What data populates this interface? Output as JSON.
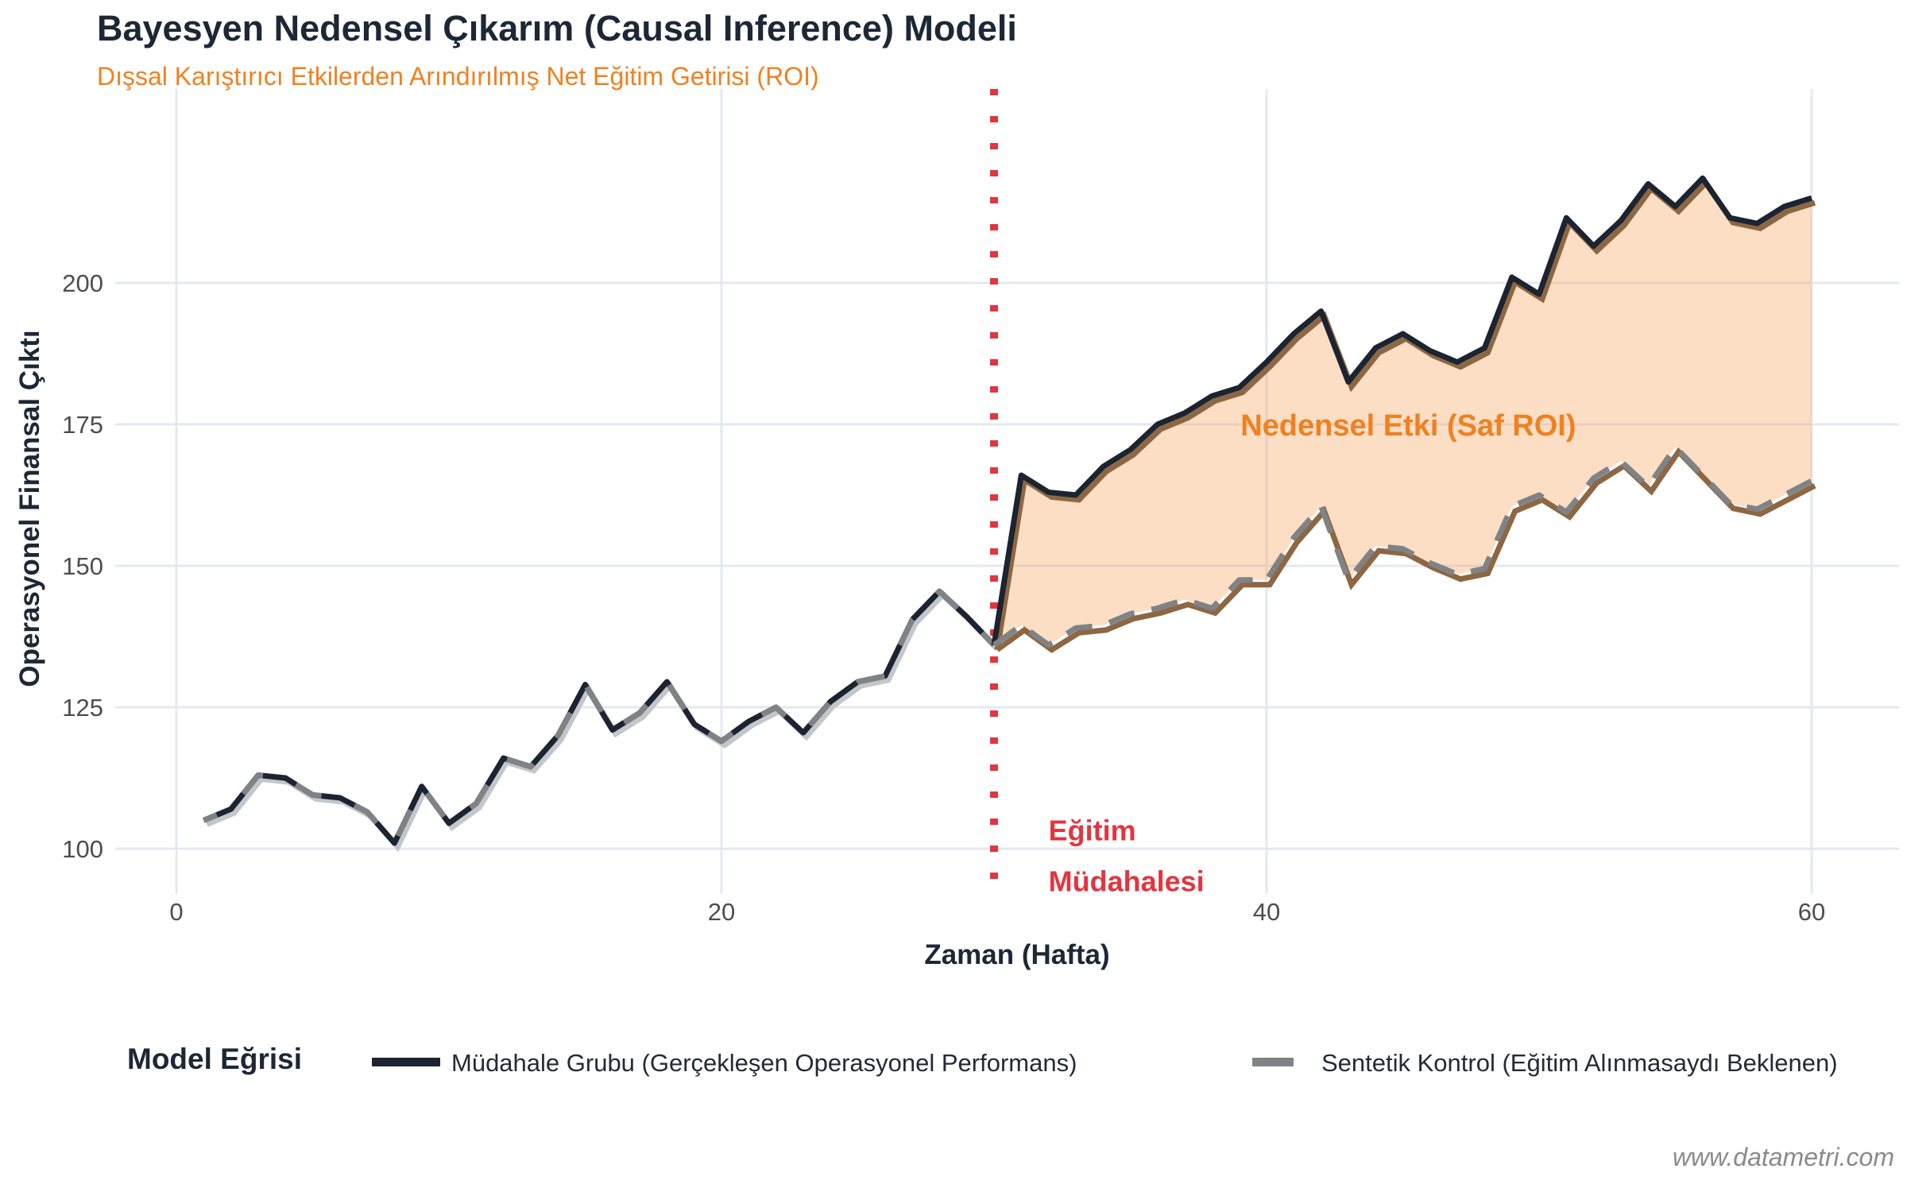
{
  "header": {
    "title": "Bayesyen Nedensel Çıkarım (Causal Inference) Modeli",
    "subtitle": "Dışsal Karıştırıcı Etkilerden Arındırılmış Net Eğitim Getirisi (ROI)"
  },
  "chart_data": {
    "type": "line",
    "title": "Bayesyen Nedensel Çıkarım (Causal Inference) Modeli",
    "subtitle": "Dışsal Karıştırıcı Etkilerden Arındırılmış Net Eğitim Getirisi (ROI)",
    "xlabel": "Zaman (Hafta)",
    "ylabel": "Operasyonel Finansal Çıktı",
    "x_ticks": [
      0,
      20,
      40,
      60
    ],
    "y_ticks": [
      100,
      125,
      150,
      175,
      200
    ],
    "xlim": [
      -2.2,
      63.2
    ],
    "ylim": [
      92,
      234
    ],
    "grid": true,
    "legend_position": "bottom",
    "x": [
      1,
      2,
      3,
      4,
      5,
      6,
      7,
      8,
      9,
      10,
      11,
      12,
      13,
      14,
      15,
      16,
      17,
      18,
      19,
      20,
      21,
      22,
      23,
      24,
      25,
      26,
      27,
      28,
      29,
      30,
      31,
      32,
      33,
      34,
      35,
      36,
      37,
      38,
      39,
      40,
      41,
      42,
      43,
      44,
      45,
      46,
      47,
      48,
      49,
      50,
      51,
      52,
      53,
      54,
      55,
      56,
      57,
      58,
      59,
      60
    ],
    "series": [
      {
        "name": "Müdahale Grubu (Gerçekleşen Operasyonel Performans)",
        "style": "solid",
        "color": "#1b2430",
        "values": [
          105,
          107,
          113,
          112.5,
          109.5,
          109,
          106.5,
          101,
          111,
          104.5,
          108,
          116,
          114.5,
          120,
          129,
          121,
          124,
          129.5,
          122,
          119,
          122.5,
          125,
          120.5,
          126,
          129.5,
          130.5,
          140.5,
          145.5,
          141,
          136,
          166,
          163,
          162.5,
          167.5,
          170.5,
          175,
          177,
          180,
          181.5,
          186,
          191,
          195,
          182.5,
          188.5,
          191,
          188,
          186,
          188.5,
          201,
          198,
          211.5,
          206.5,
          211,
          217.5,
          213.5,
          218.5,
          211.5,
          210.5,
          213.5,
          215
        ]
      },
      {
        "name": "Sentetik Kontrol (Eğitim Alınmasaydı Beklenen)",
        "style": "dashed",
        "color": "#7f8386",
        "values": [
          105,
          107,
          113,
          112.5,
          109.5,
          109,
          106.5,
          101,
          111,
          104.5,
          108,
          116,
          114.5,
          120,
          129,
          121,
          124,
          129.5,
          122,
          119,
          122.5,
          125,
          120.5,
          126,
          129.5,
          130.5,
          140.5,
          145.5,
          141,
          136,
          139.5,
          136,
          139,
          139.5,
          141.5,
          142.5,
          144,
          142.5,
          147.5,
          147.5,
          155,
          160.5,
          147.5,
          153.5,
          153,
          150.5,
          148.5,
          149.5,
          160.5,
          162.5,
          159.5,
          165.5,
          168.5,
          164,
          171,
          166,
          161,
          160,
          162.5,
          165
        ]
      }
    ],
    "intervention_line": {
      "x": 30,
      "color": "#e23540",
      "label_line1": "Eğitim",
      "label_line2": "Müdahalesi"
    },
    "effect_annotation": {
      "text": "Nedensel Etki (Saf ROI)",
      "color": "#ef8120",
      "x": 45.2,
      "y": 173
    },
    "ribbon": {
      "from_x": 30,
      "fill": "rgba(245,160,90,0.35)",
      "edge": "#8d6743"
    },
    "colors": {
      "grid": "#e4e9f0",
      "tick_text": "#4d4d4d",
      "pre_shadow": "#c3c6ca"
    }
  },
  "legend": {
    "title": "Model Eğrisi",
    "items": [
      {
        "label": "Müdahale Grubu (Gerçekleşen Operasyonel Performans)",
        "swatch": "solid-dark-line"
      },
      {
        "label": "Sentetik Kontrol (Eğitim Alınmasaydı Beklenen)",
        "swatch": "dashed-gray-line"
      }
    ]
  },
  "watermark": "www.datametri.com"
}
